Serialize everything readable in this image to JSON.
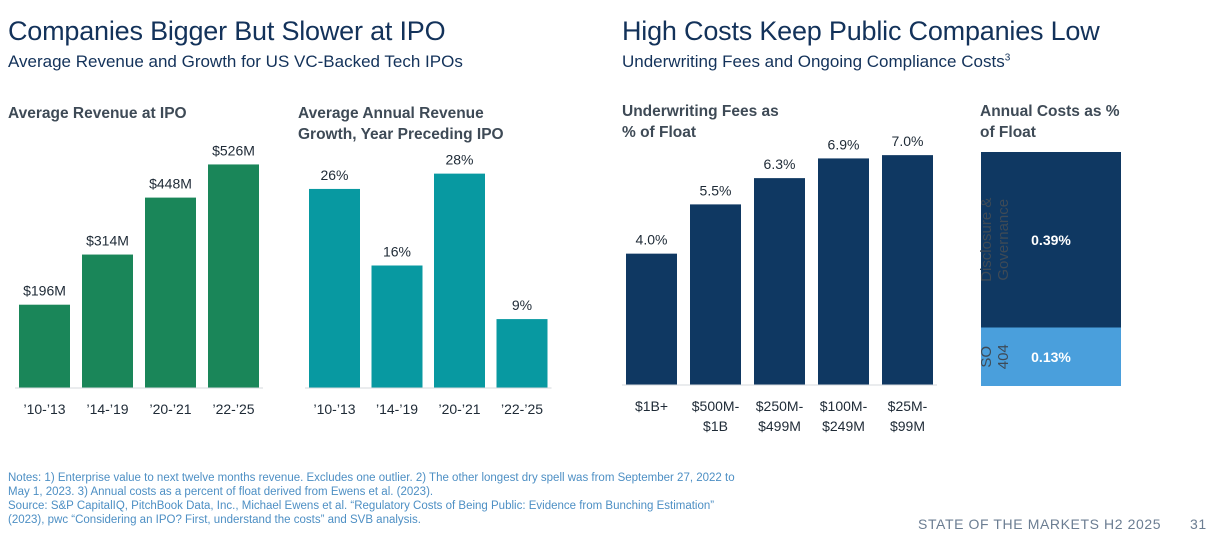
{
  "left": {
    "title": "Companies Bigger But Slower at IPO",
    "subtitle": "Average Revenue and Growth for US VC-Backed Tech IPOs"
  },
  "right": {
    "title": "High Costs Keep Public Companies Low",
    "subtitle": "Underwriting Fees and Ongoing Compliance Costs",
    "subtitle_sup": "3"
  },
  "notes": {
    "line1": "Notes: 1) Enterprise value to next twelve months revenue. Excludes one outlier. 2) The other longest dry spell was from September 27, 2022 to",
    "line2": "May 1, 2023. 3) Annual costs as a percent of float derived from Ewens et al. (2023).",
    "line3": "Source: S&P CapitalIQ, PitchBook Data, Inc., Michael Ewens et al. “Regulatory Costs of Being Public: Evidence from Bunching Estimation”",
    "line4": "(2023), pwc “Considering an IPO? First, understand the costs” and SVB analysis."
  },
  "footer": {
    "label": "STATE OF THE MARKETS H2 2025",
    "page": "31"
  },
  "colors": {
    "green": "#1a8659",
    "teal": "#0899a1",
    "navy": "#0f3862",
    "light_blue": "#4a9fdc"
  },
  "chart_data": [
    {
      "type": "bar",
      "title": "Average Revenue at IPO",
      "categories": [
        "’10-’13",
        "’14-’19",
        "’20-’21",
        "’22-’25"
      ],
      "values": [
        196,
        314,
        448,
        526
      ],
      "labels": [
        "$196M",
        "$314M",
        "$448M",
        "$526M"
      ],
      "unit": "$M",
      "ylim": [
        0,
        600
      ]
    },
    {
      "type": "bar",
      "title": "Average Annual Revenue Growth, Year Preceding IPO",
      "categories": [
        "’10-’13",
        "’14-’19",
        "’20-’21",
        "’22-’25"
      ],
      "values": [
        26,
        16,
        28,
        9
      ],
      "labels": [
        "26%",
        "16%",
        "28%",
        "9%"
      ],
      "unit": "%",
      "ylim": [
        0,
        32
      ]
    },
    {
      "type": "bar",
      "title": "Underwriting Fees as % of Float",
      "categories": [
        [
          "$1B+"
        ],
        [
          "$500M-",
          "$1B"
        ],
        [
          "$250M-",
          "$499M"
        ],
        [
          "$100M-",
          "$249M"
        ],
        [
          "$25M-",
          "$99M"
        ]
      ],
      "values": [
        4.0,
        5.5,
        6.3,
        6.9,
        7.0
      ],
      "labels": [
        "4.0%",
        "5.5%",
        "6.3%",
        "6.9%",
        "7.0%"
      ],
      "unit": "%",
      "ylim": [
        0,
        7.4
      ]
    },
    {
      "type": "bar",
      "stacked": true,
      "title": "Annual Costs as % of Float",
      "segments": [
        {
          "name": "SO 404",
          "name_lines": [
            "SO",
            "404"
          ],
          "value": 0.13,
          "label": "0.13%"
        },
        {
          "name": "Disclosure & Governance",
          "name_lines": [
            "Disclosure &",
            "Governance"
          ],
          "value": 0.39,
          "label": "0.39%"
        }
      ],
      "unit": "%"
    }
  ]
}
